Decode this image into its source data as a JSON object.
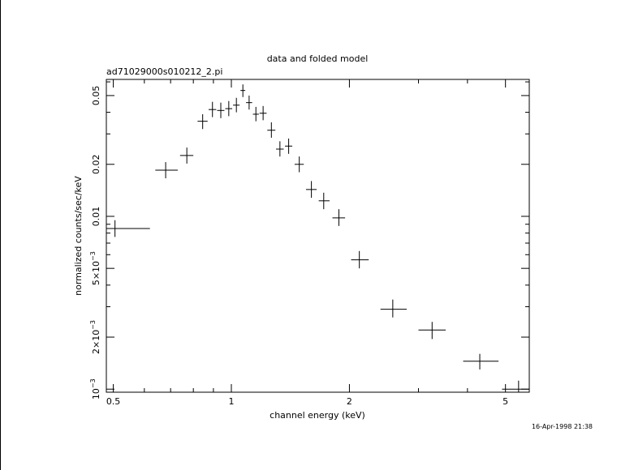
{
  "chart_data": {
    "type": "scatter",
    "title": "data and folded model",
    "subtitle": "ad71029000s010212_2.pi",
    "xlabel": "channel energy (keV)",
    "ylabel": "normalized counts/sec/keV",
    "timestamp": "16-Apr-1998 21:38",
    "x_scale": "log",
    "y_scale": "log",
    "xlim": [
      0.48,
      5.75
    ],
    "ylim": [
      0.00096,
      0.062
    ],
    "grid": false,
    "x_ticks": [
      {
        "value": 0.5,
        "label": "0.5"
      },
      {
        "value": 1,
        "label": "1"
      },
      {
        "value": 2,
        "label": "2"
      },
      {
        "value": 5,
        "label": "5"
      }
    ],
    "y_ticks": [
      {
        "value": 0.001,
        "mant": "10",
        "exp": "−3"
      },
      {
        "value": 0.002,
        "mant": "2×10",
        "exp": "−3"
      },
      {
        "value": 0.005,
        "mant": "5×10",
        "exp": "−3"
      },
      {
        "value": 0.01,
        "mant": "0.01",
        "exp": ""
      },
      {
        "value": 0.02,
        "mant": "0.02",
        "exp": ""
      },
      {
        "value": 0.05,
        "mant": "0.05",
        "exp": ""
      }
    ],
    "points": [
      {
        "x": 0.505,
        "xlo": 0.48,
        "xhi": 0.62,
        "y": 0.0085,
        "ylo": 0.0076,
        "yhi": 0.0095
      },
      {
        "x": 0.68,
        "xlo": 0.64,
        "xhi": 0.73,
        "y": 0.0185,
        "ylo": 0.0166,
        "yhi": 0.0206
      },
      {
        "x": 0.77,
        "xlo": 0.74,
        "xhi": 0.8,
        "y": 0.0225,
        "ylo": 0.0202,
        "yhi": 0.025
      },
      {
        "x": 0.845,
        "xlo": 0.82,
        "xhi": 0.87,
        "y": 0.0355,
        "ylo": 0.032,
        "yhi": 0.039
      },
      {
        "x": 0.895,
        "xlo": 0.875,
        "xhi": 0.915,
        "y": 0.0415,
        "ylo": 0.0375,
        "yhi": 0.046
      },
      {
        "x": 0.94,
        "xlo": 0.92,
        "xhi": 0.96,
        "y": 0.041,
        "ylo": 0.037,
        "yhi": 0.0455
      },
      {
        "x": 0.985,
        "xlo": 0.965,
        "xhi": 1.005,
        "y": 0.042,
        "ylo": 0.038,
        "yhi": 0.0465
      },
      {
        "x": 1.03,
        "xlo": 1.01,
        "xhi": 1.05,
        "y": 0.044,
        "ylo": 0.04,
        "yhi": 0.0485
      },
      {
        "x": 1.07,
        "xlo": 1.055,
        "xhi": 1.085,
        "y": 0.0535,
        "ylo": 0.049,
        "yhi": 0.058
      },
      {
        "x": 1.11,
        "xlo": 1.09,
        "xhi": 1.13,
        "y": 0.0455,
        "ylo": 0.0415,
        "yhi": 0.05
      },
      {
        "x": 1.155,
        "xlo": 1.135,
        "xhi": 1.175,
        "y": 0.039,
        "ylo": 0.0355,
        "yhi": 0.043
      },
      {
        "x": 1.205,
        "xlo": 1.18,
        "xhi": 1.23,
        "y": 0.0395,
        "ylo": 0.036,
        "yhi": 0.0435
      },
      {
        "x": 1.265,
        "xlo": 1.235,
        "xhi": 1.295,
        "y": 0.0315,
        "ylo": 0.0285,
        "yhi": 0.035
      },
      {
        "x": 1.33,
        "xlo": 1.3,
        "xhi": 1.36,
        "y": 0.0245,
        "ylo": 0.0222,
        "yhi": 0.0272
      },
      {
        "x": 1.4,
        "xlo": 1.37,
        "xhi": 1.43,
        "y": 0.0255,
        "ylo": 0.023,
        "yhi": 0.0282
      },
      {
        "x": 1.49,
        "xlo": 1.45,
        "xhi": 1.53,
        "y": 0.02,
        "ylo": 0.018,
        "yhi": 0.0222
      },
      {
        "x": 1.6,
        "xlo": 1.55,
        "xhi": 1.65,
        "y": 0.0143,
        "ylo": 0.0128,
        "yhi": 0.016
      },
      {
        "x": 1.72,
        "xlo": 1.67,
        "xhi": 1.78,
        "y": 0.0123,
        "ylo": 0.011,
        "yhi": 0.0137
      },
      {
        "x": 1.88,
        "xlo": 1.81,
        "xhi": 1.95,
        "y": 0.0098,
        "ylo": 0.0088,
        "yhi": 0.011
      },
      {
        "x": 2.12,
        "xlo": 2.02,
        "xhi": 2.24,
        "y": 0.0056,
        "ylo": 0.005,
        "yhi": 0.0063
      },
      {
        "x": 2.58,
        "xlo": 2.4,
        "xhi": 2.8,
        "y": 0.0029,
        "ylo": 0.0026,
        "yhi": 0.0033
      },
      {
        "x": 3.25,
        "xlo": 3.0,
        "xhi": 3.52,
        "y": 0.0022,
        "ylo": 0.00195,
        "yhi": 0.00245
      },
      {
        "x": 4.3,
        "xlo": 3.9,
        "xhi": 4.8,
        "y": 0.00145,
        "ylo": 0.0013,
        "yhi": 0.0016
      },
      {
        "x": 5.4,
        "xlo": 4.9,
        "xhi": 5.75,
        "y": 0.001,
        "ylo": 0.00096,
        "yhi": 0.00112
      }
    ]
  }
}
